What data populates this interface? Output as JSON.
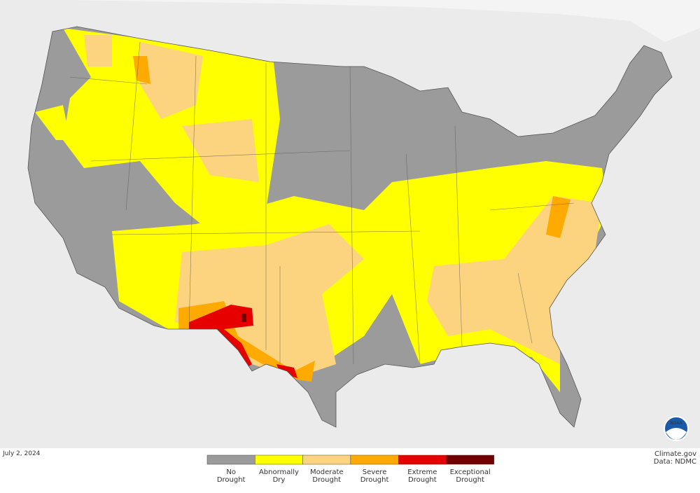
{
  "date": "July 2, 2024",
  "legend": [
    {
      "lines": [
        "No",
        "Drought"
      ],
      "color": "#9b9b9b"
    },
    {
      "lines": [
        "Abnormally",
        "Dry"
      ],
      "color": "#ffff00"
    },
    {
      "lines": [
        "Moderate",
        "Drought"
      ],
      "color": "#fcd37f"
    },
    {
      "lines": [
        "Severe",
        "Drought"
      ],
      "color": "#ffaa00"
    },
    {
      "lines": [
        "Extreme",
        "Drought"
      ],
      "color": "#e60000"
    },
    {
      "lines": [
        "Exceptional",
        "Drought"
      ],
      "color": "#730000"
    }
  ],
  "credits": [
    "Climate.gov",
    "Data: NDMC"
  ]
}
